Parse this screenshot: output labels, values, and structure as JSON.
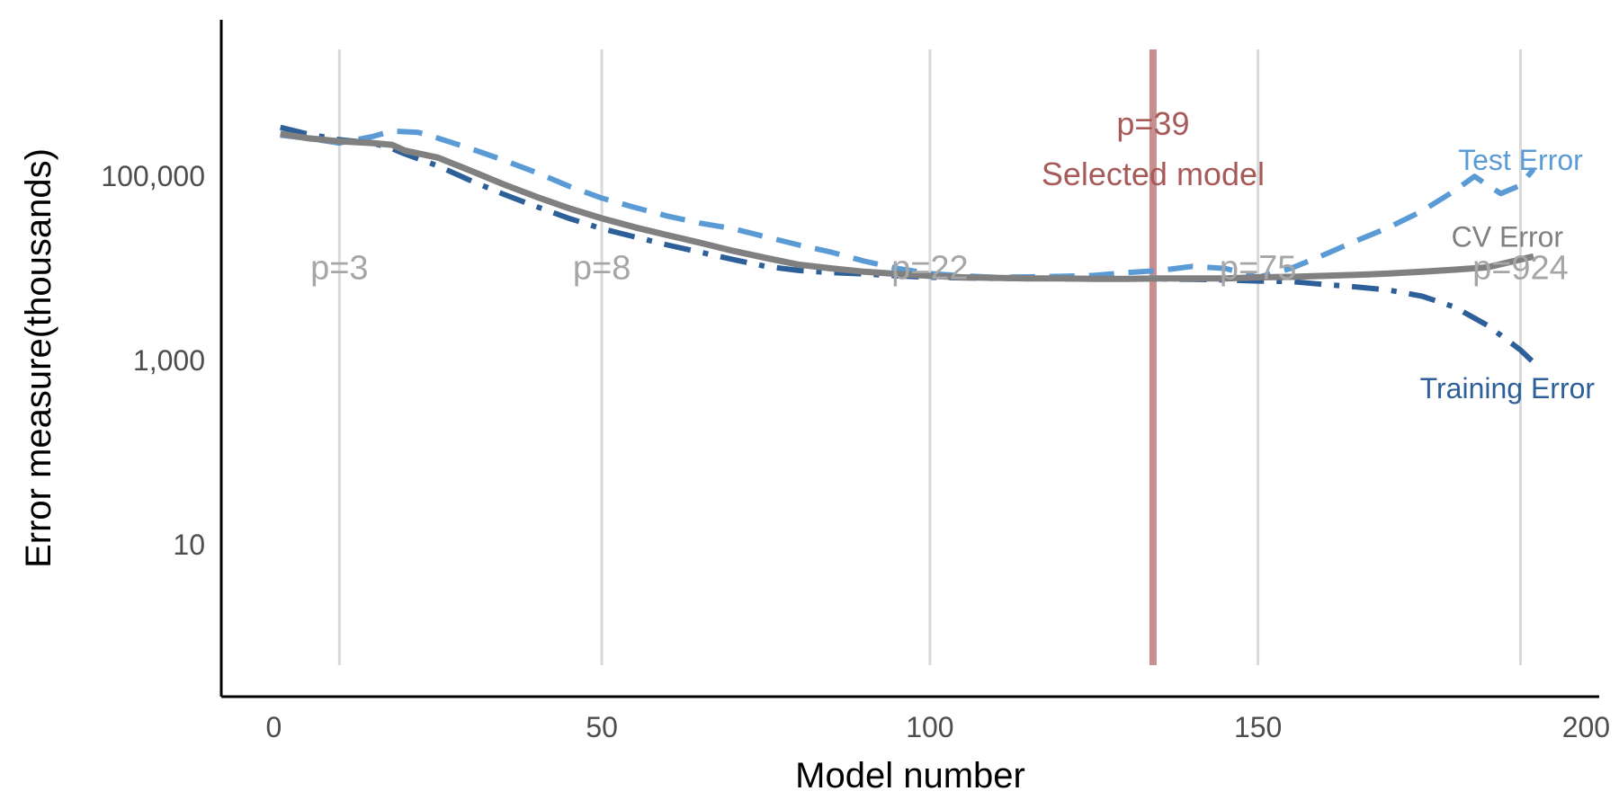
{
  "chart_data": {
    "type": "line",
    "xlabel": "Model number",
    "ylabel": "Error measure(thousands)",
    "xlim": [
      -8,
      202
    ],
    "ylim_log10": [
      -0.65,
      6.7
    ],
    "y_scale": "log",
    "grid": false,
    "x_ticks": [
      {
        "value": 0,
        "label": "0"
      },
      {
        "value": 50,
        "label": "50"
      },
      {
        "value": 100,
        "label": "100"
      },
      {
        "value": 150,
        "label": "150"
      },
      {
        "value": 200,
        "label": "200"
      }
    ],
    "y_ticks": [
      {
        "value": 10,
        "label": "10"
      },
      {
        "value": 1000,
        "label": "1,000"
      },
      {
        "value": 100000,
        "label": "100,000"
      }
    ],
    "vlines": [
      {
        "x": 10,
        "label": "p=3"
      },
      {
        "x": 50,
        "label": "p=8"
      },
      {
        "x": 100,
        "label": "p=22"
      },
      {
        "x": 150,
        "label": "p=75"
      },
      {
        "x": 190,
        "label": "p=924"
      }
    ],
    "vline_label_y": 10000,
    "selected": {
      "x": 134,
      "label_top": "p=39",
      "label_bottom": "Selected model",
      "color": "#b06060"
    },
    "series": [
      {
        "name": "Test Error",
        "color": "#5b9bd5",
        "style": "dashed",
        "x": [
          1,
          5,
          10,
          15,
          18,
          22,
          25,
          30,
          35,
          40,
          45,
          50,
          55,
          60,
          65,
          70,
          75,
          80,
          85,
          90,
          95,
          100,
          105,
          110,
          115,
          120,
          125,
          130,
          135,
          140,
          145,
          150,
          155,
          160,
          165,
          170,
          175,
          180,
          183,
          185,
          187,
          190,
          192
        ],
        "values": [
          280000,
          260000,
          230000,
          270000,
          310000,
          300000,
          260000,
          200000,
          150000,
          110000,
          78000,
          58000,
          46000,
          37000,
          31000,
          27000,
          22000,
          18000,
          15000,
          12000,
          10000,
          8800,
          8300,
          8000,
          8100,
          8200,
          8400,
          9000,
          9500,
          10500,
          10000,
          8000,
          10000,
          14000,
          20000,
          28000,
          42000,
          70000,
          100000,
          80000,
          65000,
          80000,
          120000
        ]
      },
      {
        "name": "Training Error",
        "color": "#2d5f99",
        "style": "dashdot",
        "x": [
          1,
          5,
          10,
          15,
          18,
          20,
          25,
          30,
          35,
          40,
          45,
          50,
          55,
          60,
          65,
          70,
          75,
          80,
          85,
          90,
          95,
          100,
          105,
          110,
          115,
          120,
          125,
          130,
          135,
          140,
          145,
          150,
          155,
          160,
          165,
          170,
          175,
          180,
          185,
          190,
          192
        ],
        "values": [
          340000,
          290000,
          250000,
          230000,
          200000,
          175000,
          130000,
          90000,
          64000,
          47000,
          35000,
          27000,
          22000,
          18000,
          15000,
          12500,
          10500,
          9500,
          9000,
          8700,
          8300,
          8000,
          7900,
          7800,
          7800,
          7700,
          7700,
          7700,
          7700,
          7600,
          7500,
          7300,
          7200,
          6700,
          6300,
          5800,
          5000,
          3800,
          2400,
          1300,
          950
        ]
      },
      {
        "name": "CV Error",
        "color": "#808080",
        "style": "solid",
        "x": [
          1,
          5,
          10,
          15,
          18,
          20,
          25,
          30,
          35,
          40,
          45,
          50,
          55,
          60,
          65,
          70,
          75,
          80,
          85,
          90,
          95,
          100,
          105,
          110,
          115,
          120,
          125,
          130,
          135,
          140,
          145,
          150,
          155,
          160,
          165,
          170,
          175,
          180,
          185,
          190,
          192
        ],
        "values": [
          290000,
          260000,
          240000,
          230000,
          220000,
          190000,
          160000,
          115000,
          82000,
          60000,
          45000,
          35000,
          28000,
          23000,
          19000,
          15500,
          13000,
          11000,
          10000,
          9200,
          8700,
          8300,
          8000,
          7900,
          7800,
          7800,
          7700,
          7700,
          7800,
          7800,
          7800,
          8000,
          8100,
          8300,
          8500,
          8800,
          9200,
          9700,
          10300,
          12500,
          13500
        ]
      }
    ],
    "series_labels": [
      {
        "name": "Test Error",
        "text": "Test Error",
        "x": 190,
        "y": 150000
      },
      {
        "name": "CV Error",
        "text": "CV Error",
        "x": 188,
        "y": 22000
      },
      {
        "name": "Training Error",
        "text": "Training Error",
        "x": 188,
        "y": 500
      }
    ]
  }
}
